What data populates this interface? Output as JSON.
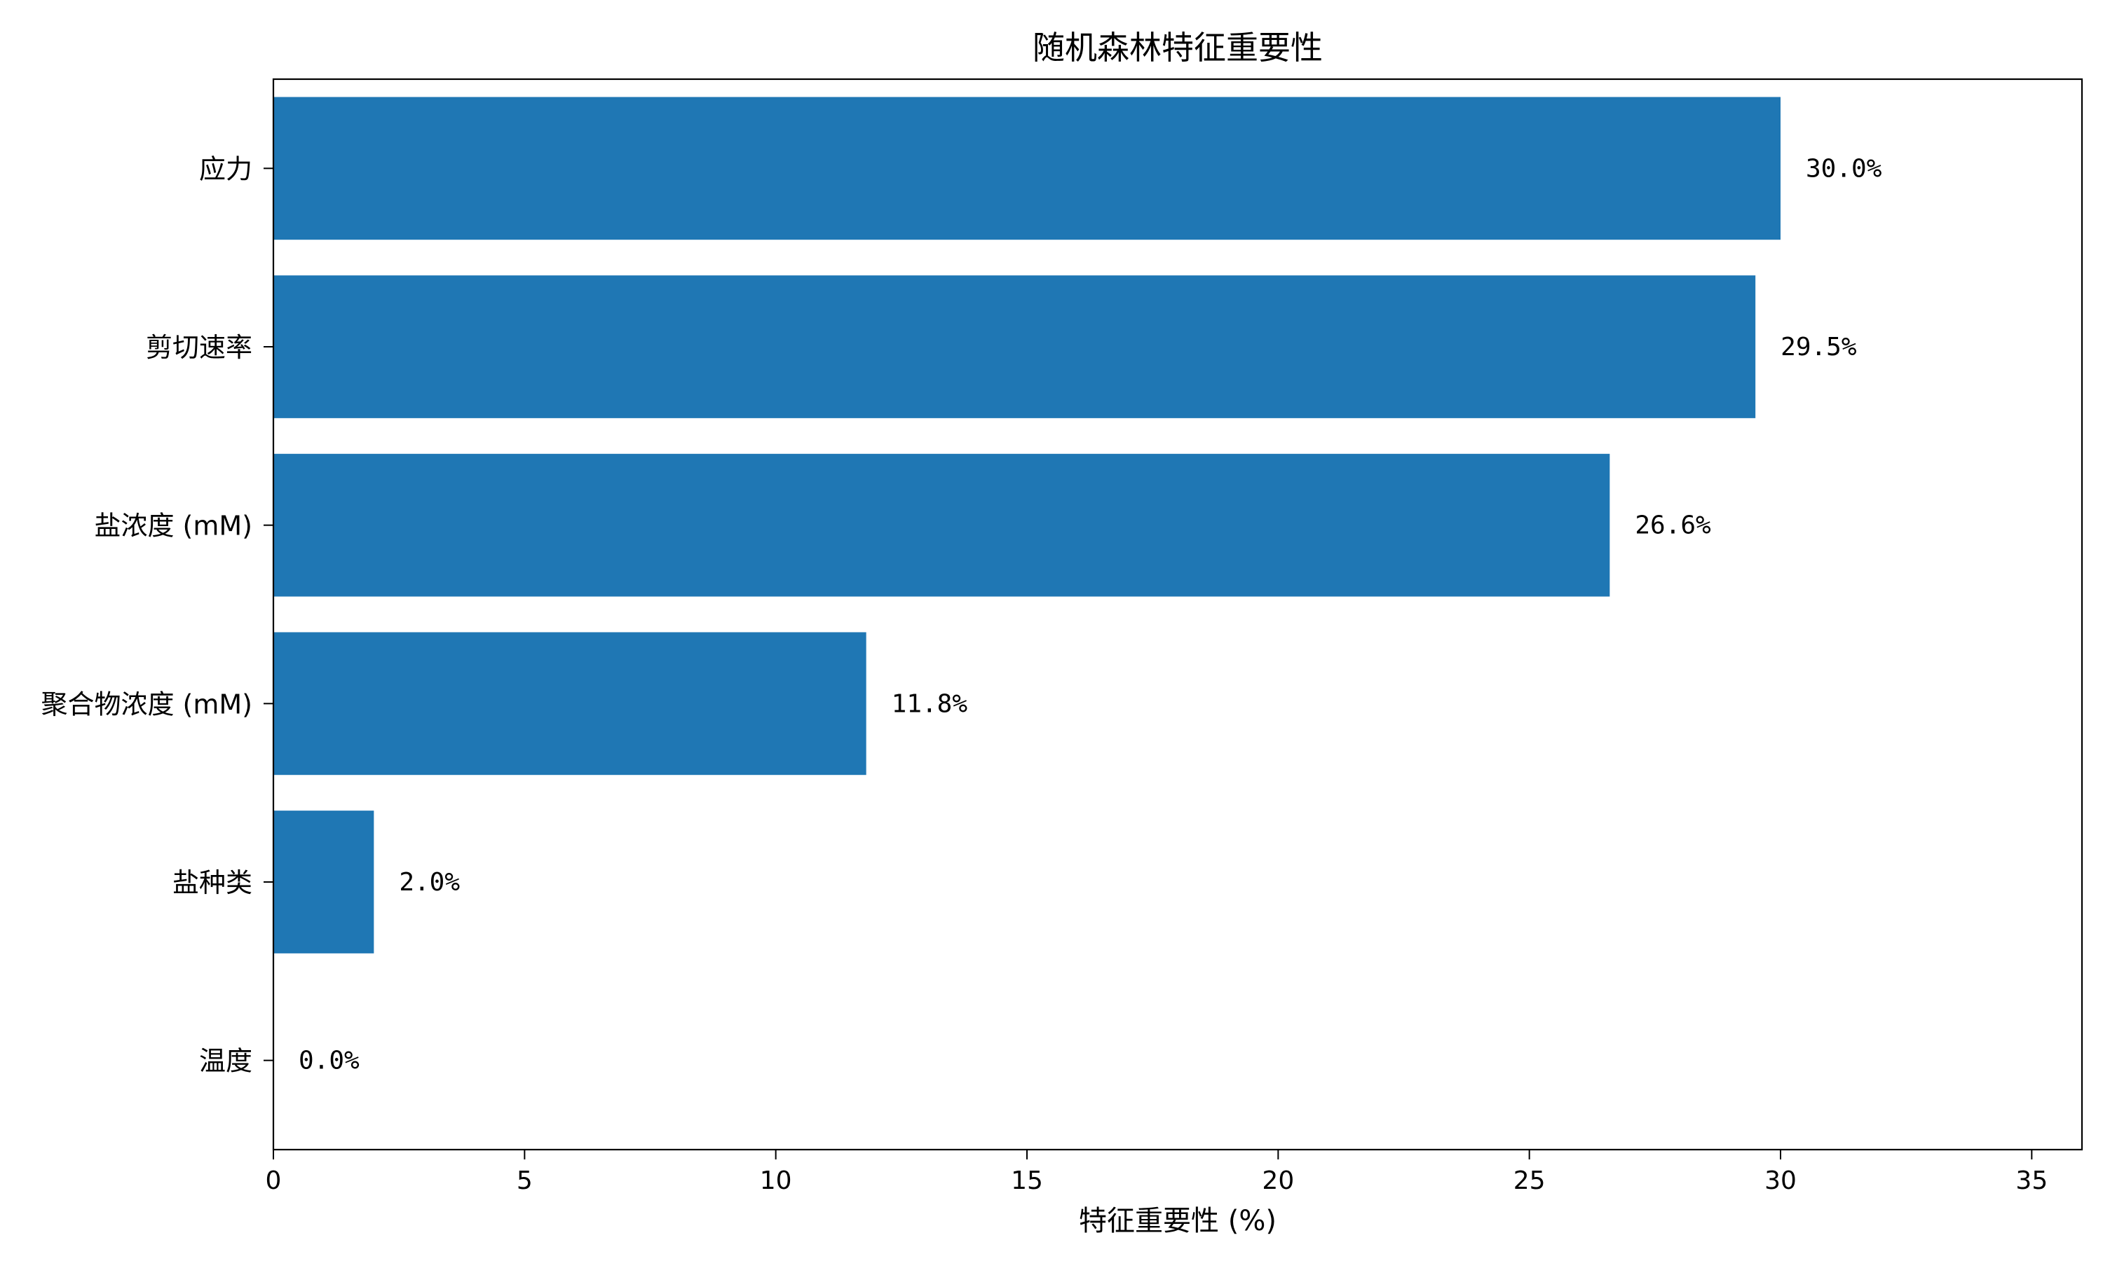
{
  "chart_data": {
    "type": "bar",
    "orientation": "horizontal",
    "title": "随机森林特征重要性",
    "xlabel": "特征重要性 (%)",
    "ylabel": "",
    "xlim": [
      0,
      36
    ],
    "xticks": [
      0,
      5,
      10,
      15,
      20,
      25,
      30,
      35
    ],
    "xtick_labels": [
      "0",
      "5",
      "10",
      "15",
      "20",
      "25",
      "30",
      "35"
    ],
    "categories": [
      "应力",
      "剪切速率",
      "盐浓度 (mM)",
      "聚合物浓度 (mM)",
      "盐种类",
      "温度"
    ],
    "values": [
      30.0,
      29.5,
      26.6,
      11.8,
      2.0,
      0.0
    ],
    "data_labels": [
      "30.0%",
      "29.5%",
      "26.6%",
      "11.8%",
      "2.0%",
      "0.0%"
    ],
    "bar_color": "#1f77b4",
    "grid": false,
    "legend": "none"
  }
}
